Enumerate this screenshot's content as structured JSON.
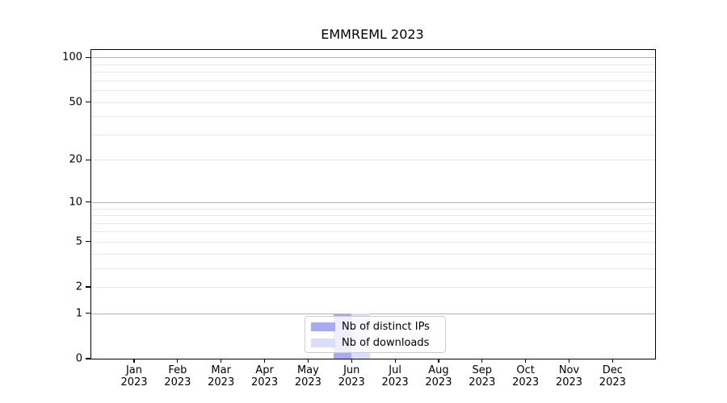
{
  "chart_data": {
    "type": "bar",
    "title": "EMMREML 2023",
    "x_categories": [
      "Jan",
      "Feb",
      "Mar",
      "Apr",
      "May",
      "Jun",
      "Jul",
      "Aug",
      "Sep",
      "Oct",
      "Nov",
      "Dec"
    ],
    "x_year": "2023",
    "series": [
      {
        "name": "Nb of distinct IPs",
        "color": "#aaaaee",
        "values": [
          0,
          0,
          0,
          0,
          0,
          1,
          0,
          0,
          0,
          0,
          0,
          0
        ]
      },
      {
        "name": "Nb of downloads",
        "color": "#ddddf7",
        "values": [
          0,
          0,
          0,
          0,
          0,
          1,
          0,
          0,
          0,
          0,
          0,
          0
        ]
      }
    ],
    "yscale": "log10(1+y)",
    "ylim": [
      0,
      112
    ],
    "yticks": [
      0,
      1,
      2,
      5,
      10,
      20,
      50,
      100
    ],
    "major_gridline_values": [
      1,
      10,
      100
    ],
    "minor_gridline_values": [
      2,
      3,
      4,
      5,
      6,
      7,
      8,
      9,
      20,
      30,
      40,
      50,
      60,
      70,
      80,
      90
    ],
    "grid": true,
    "legend_position": "lower center",
    "colors": {
      "major_grid": "#b3b3b3",
      "minor_grid": "#e8e8e8",
      "spine": "#000000",
      "background": "#ffffff"
    }
  }
}
